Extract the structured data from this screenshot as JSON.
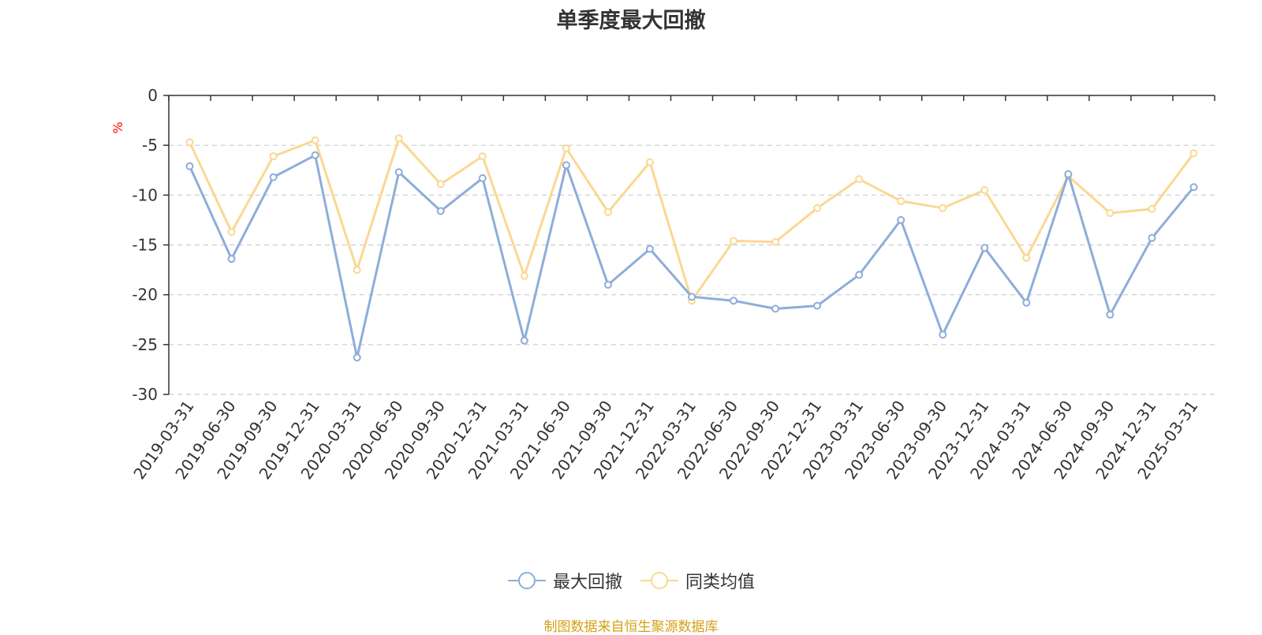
{
  "chart_data": {
    "type": "line",
    "title": "单季度最大回撤",
    "ylabel": "%",
    "ylim": [
      -30,
      0
    ],
    "yticks": [
      0,
      -5,
      -10,
      -15,
      -20,
      -25,
      -30
    ],
    "grid": true,
    "legend_position": "bottom-center",
    "categories": [
      "2019-03-31",
      "2019-06-30",
      "2019-09-30",
      "2019-12-31",
      "2020-03-31",
      "2020-06-30",
      "2020-09-30",
      "2020-12-31",
      "2021-03-31",
      "2021-06-30",
      "2021-09-30",
      "2021-12-31",
      "2022-03-31",
      "2022-06-30",
      "2022-09-30",
      "2022-12-31",
      "2023-03-31",
      "2023-06-30",
      "2023-09-30",
      "2023-12-31",
      "2024-03-31",
      "2024-06-30",
      "2024-09-30",
      "2024-12-31",
      "2025-03-31"
    ],
    "series": [
      {
        "name": "最大回撤",
        "color": "#8eadd9",
        "values": [
          -7.1,
          -16.4,
          -8.2,
          -6.0,
          -26.3,
          -7.7,
          -11.6,
          -8.3,
          -24.6,
          -7.0,
          -19.0,
          -15.4,
          -20.2,
          -20.6,
          -21.4,
          -21.1,
          -18.0,
          -12.5,
          -24.0,
          -15.3,
          -20.8,
          -7.9,
          -22.0,
          -14.3,
          -9.2
        ]
      },
      {
        "name": "同类均值",
        "color": "#fad893",
        "values": [
          -4.7,
          -13.7,
          -6.1,
          -4.5,
          -17.5,
          -4.3,
          -8.9,
          -6.1,
          -18.1,
          -5.3,
          -11.7,
          -6.7,
          -20.6,
          -14.6,
          -14.7,
          -11.3,
          -8.4,
          -10.6,
          -11.3,
          -9.5,
          -16.3,
          -8.1,
          -11.8,
          -11.4,
          -5.8
        ]
      }
    ]
  },
  "footer": {
    "source": "制图数据来自恒生聚源数据库"
  }
}
